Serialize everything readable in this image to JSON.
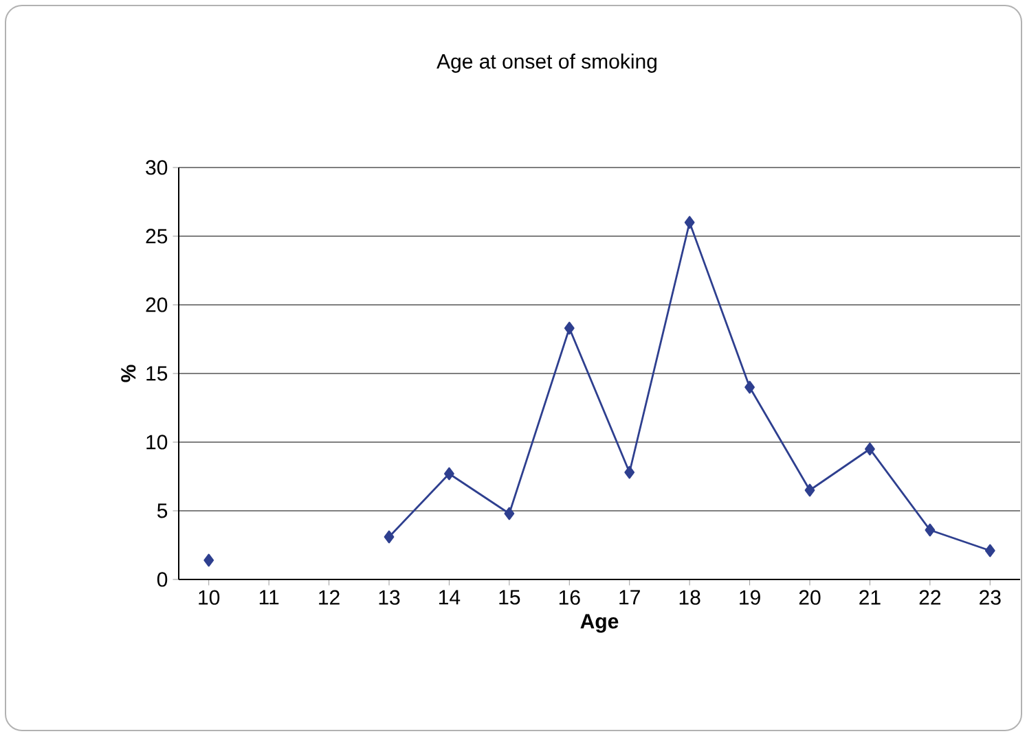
{
  "chart_data": {
    "type": "line",
    "title": "Age at onset of smoking",
    "xlabel": "Age",
    "ylabel": "%",
    "categories": [
      "10",
      "11",
      "12",
      "13",
      "14",
      "15",
      "16",
      "17",
      "18",
      "19",
      "20",
      "21",
      "22",
      "23"
    ],
    "series": [
      {
        "color": "#2e3f8f",
        "values": [
          1.4,
          null,
          null,
          3.1,
          7.7,
          4.8,
          18.3,
          7.8,
          26,
          14,
          6.5,
          9.5,
          3.6,
          2.1
        ]
      }
    ],
    "ylim": [
      0,
      30
    ],
    "yticks": [
      0,
      5,
      10,
      15,
      20,
      25,
      30
    ],
    "grid": "y",
    "marker": "diamond",
    "line_style": "solid",
    "legend": false
  }
}
